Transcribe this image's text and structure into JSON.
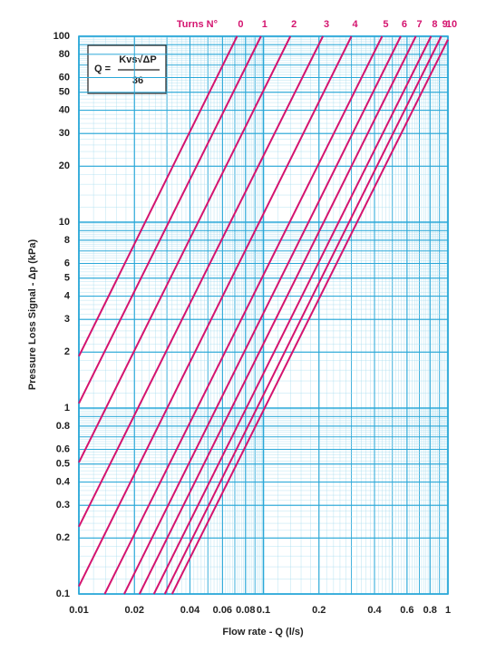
{
  "chart_data": {
    "type": "line",
    "log_x": true,
    "log_y": true,
    "grid": true,
    "series_title": "Turns N°",
    "xlabel": "Flow rate - Q (l/s)",
    "ylabel": "Pressure Loss Signal - Δp (kPa)",
    "formula": {
      "lhs": "Q =",
      "numerator": "Kvs√ΔP",
      "denominator": "36"
    },
    "xlim": [
      0.01,
      1
    ],
    "ylim": [
      0.1,
      100
    ],
    "xticks": [
      0.01,
      0.02,
      0.04,
      0.06,
      0.08,
      0.1,
      0.2,
      0.4,
      0.6,
      0.8,
      1
    ],
    "yticks": [
      0.1,
      0.2,
      0.3,
      0.4,
      0.5,
      0.6,
      0.8,
      1,
      2,
      3,
      4,
      5,
      6,
      8,
      10,
      20,
      30,
      40,
      50,
      60,
      80,
      100
    ],
    "series": [
      {
        "name": "0",
        "color": "#d4146f",
        "x": [
          0.01,
          0.072
        ],
        "values": [
          1.9,
          100
        ]
      },
      {
        "name": "1",
        "color": "#d4146f",
        "x": [
          0.01,
          0.097
        ],
        "values": [
          1.06,
          100
        ]
      },
      {
        "name": "2",
        "color": "#d4146f",
        "x": [
          0.01,
          0.14
        ],
        "values": [
          0.51,
          100
        ]
      },
      {
        "name": "3",
        "color": "#d4146f",
        "x": [
          0.01,
          0.21
        ],
        "values": [
          0.23,
          100
        ]
      },
      {
        "name": "4",
        "color": "#d4146f",
        "x": [
          0.01,
          0.3
        ],
        "values": [
          0.11,
          100
        ]
      },
      {
        "name": "5",
        "color": "#d4146f",
        "x": [
          0.0138,
          0.44
        ],
        "values": [
          0.1,
          100
        ]
      },
      {
        "name": "6",
        "color": "#d4146f",
        "x": [
          0.0176,
          0.555
        ],
        "values": [
          0.1,
          100
        ]
      },
      {
        "name": "7",
        "color": "#d4146f",
        "x": [
          0.0213,
          0.67
        ],
        "values": [
          0.1,
          100
        ]
      },
      {
        "name": "8",
        "color": "#d4146f",
        "x": [
          0.0255,
          0.81
        ],
        "values": [
          0.1,
          100
        ]
      },
      {
        "name": "9",
        "color": "#d4146f",
        "x": [
          0.0292,
          0.92
        ],
        "values": [
          0.1,
          100
        ]
      },
      {
        "name": "10",
        "color": "#d4146f",
        "x": [
          0.032,
          1
        ],
        "values": [
          0.1,
          96
        ]
      }
    ]
  }
}
